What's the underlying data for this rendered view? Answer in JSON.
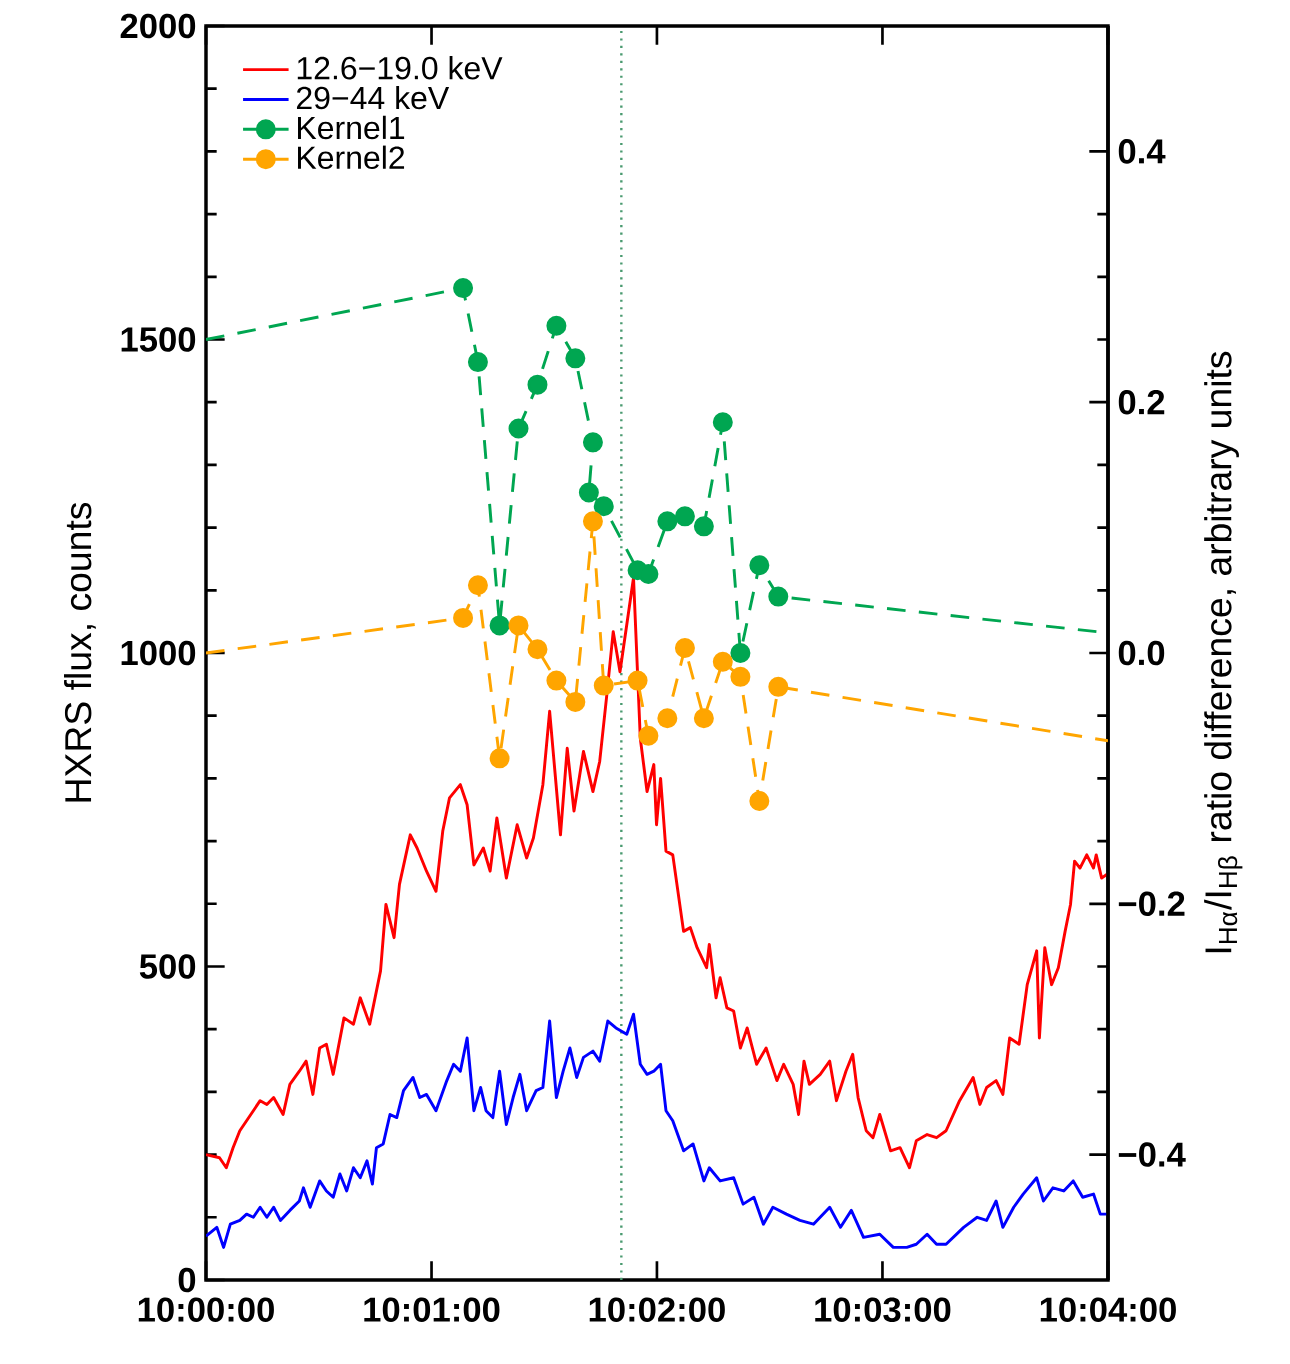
{
  "chart_data": {
    "type": "line",
    "ylabel": "HXRS flux, counts",
    "y2label": "I$_{Hα}$/I$_{Hβ}$ ratio difference, arbitrary units",
    "legend": "top left",
    "xlim": [
      10,
      10.06667
    ],
    "xticks": [
      {
        "value": 10,
        "label": "10:00:00"
      },
      {
        "value": 10.01667,
        "label": "10:01:00"
      },
      {
        "value": 10.03333,
        "label": "10:02:00"
      },
      {
        "value": 10.05,
        "label": "10:03:00"
      },
      {
        "value": 10.06667,
        "label": "10:04:00"
      }
    ],
    "ylim": [
      0,
      2000
    ],
    "yticks": [
      0,
      500,
      1000,
      1500,
      2000
    ],
    "y2lim": [
      -0.5,
      0.5
    ],
    "y2ticks": [
      {
        "value": -0.4,
        "label": "−0.4"
      },
      {
        "value": -0.2,
        "label": "−0.2"
      },
      {
        "value": 0,
        "label": "0.0"
      },
      {
        "value": 0.2,
        "label": "0.2"
      },
      {
        "value": 0.4,
        "label": "0.4"
      }
    ],
    "ref_lines": [
      {
        "axis": "x",
        "value": 10.0307,
        "color": "#4a9a70",
        "line_style": "dotted"
      }
    ],
    "series": [
      {
        "name": "12.6−19.0 keV",
        "color": "#ff0000",
        "marker": "none",
        "line_style": "solid",
        "x": [
          10.0,
          10.001,
          10.0015,
          10.002,
          10.0025,
          10.003,
          10.0035,
          10.004,
          10.0045,
          10.005,
          10.0057,
          10.0062,
          10.0069,
          10.0074,
          10.0079,
          10.0084,
          10.0089,
          10.0094,
          10.0102,
          10.0109,
          10.0114,
          10.0121,
          10.0129,
          10.0133,
          10.0139,
          10.0143,
          10.0151,
          10.0156,
          10.0163,
          10.017,
          10.0175,
          10.018,
          10.0188,
          10.0193,
          10.0198,
          10.0205,
          10.021,
          10.0215,
          10.0222,
          10.023,
          10.0237,
          10.0242,
          10.0249,
          10.0254,
          10.0262,
          10.0267,
          10.0272,
          10.0279,
          10.0286,
          10.0291,
          10.0296,
          10.0301,
          10.0306,
          10.0311,
          10.0316,
          10.0321,
          10.0326,
          10.0331,
          10.0333,
          10.0336,
          10.034,
          10.0345,
          10.0353,
          10.0358,
          10.0363,
          10.037,
          10.0372,
          10.0377,
          10.038,
          10.0385,
          10.039,
          10.0395,
          10.04,
          10.0407,
          10.0414,
          10.0422,
          10.0427,
          10.0434,
          10.0438,
          10.0442,
          10.0446,
          10.0454,
          10.0461,
          10.0466,
          10.0473,
          10.0478,
          10.0482,
          10.0488,
          10.0493,
          10.0498,
          10.0506,
          10.0513,
          10.052,
          10.0525,
          10.0533,
          10.054,
          10.0547,
          10.0557,
          10.0567,
          10.0572,
          10.0577,
          10.0584,
          10.0589,
          10.0594,
          10.0601,
          10.0607,
          10.0614,
          10.0616,
          10.062,
          10.0625,
          10.063,
          10.0635,
          10.0639,
          10.0642,
          10.0646,
          10.0651,
          10.0656,
          10.0658,
          10.0662,
          10.0666
        ],
        "values": [
          200,
          195,
          179,
          211,
          238,
          254,
          270,
          286,
          280,
          291,
          264,
          312,
          333,
          349,
          296,
          370,
          376,
          328,
          418,
          408,
          450,
          408,
          493,
          599,
          546,
          631,
          710,
          689,
          652,
          620,
          716,
          769,
          790,
          758,
          662,
          689,
          652,
          737,
          641,
          726,
          673,
          705,
          790,
          907,
          710,
          848,
          748,
          843,
          779,
          827,
          928,
          1034,
          970,
          1045,
          1120,
          864,
          779,
          822,
          726,
          800,
          684,
          678,
          556,
          562,
          530,
          498,
          535,
          450,
          482,
          434,
          429,
          370,
          402,
          344,
          370,
          318,
          344,
          312,
          264,
          349,
          312,
          328,
          349,
          286,
          333,
          360,
          291,
          238,
          227,
          264,
          206,
          211,
          179,
          222,
          232,
          227,
          238,
          286,
          323,
          280,
          307,
          318,
          296,
          386,
          376,
          471,
          525,
          386,
          530,
          471,
          498,
          556,
          599,
          668,
          657,
          678,
          657,
          678,
          641,
          647
        ]
      },
      {
        "name": "29−44 keV",
        "color": "#0000ff",
        "marker": "none",
        "line_style": "solid",
        "x": [
          10.0,
          10.0008,
          10.0013,
          10.0018,
          10.0025,
          10.003,
          10.0035,
          10.004,
          10.0045,
          10.005,
          10.0055,
          10.0062,
          10.0069,
          10.0072,
          10.0077,
          10.0084,
          10.0089,
          10.0094,
          10.0099,
          10.0104,
          10.0109,
          10.0114,
          10.0119,
          10.0123,
          10.0126,
          10.0131,
          10.0136,
          10.0141,
          10.0146,
          10.0153,
          10.0158,
          10.0163,
          10.017,
          10.0178,
          10.0183,
          10.0188,
          10.0193,
          10.0198,
          10.0203,
          10.0207,
          10.0212,
          10.0217,
          10.0222,
          10.0227,
          10.0232,
          10.0237,
          10.0244,
          10.0249,
          10.0254,
          10.0259,
          10.0264,
          10.0269,
          10.0274,
          10.0279,
          10.0286,
          10.0291,
          10.0297,
          10.0303,
          10.0311,
          10.0316,
          10.0321,
          10.0326,
          10.0331,
          10.0336,
          10.034,
          10.0345,
          10.0353,
          10.036,
          10.0368,
          10.0372,
          10.038,
          10.039,
          10.0397,
          10.0405,
          10.0412,
          10.0419,
          10.0429,
          10.0439,
          10.0449,
          10.0461,
          10.0469,
          10.0477,
          10.0486,
          10.0498,
          10.0508,
          10.0518,
          10.0525,
          10.0533,
          10.054,
          10.0547,
          10.056,
          10.057,
          10.0577,
          10.0584,
          10.0589,
          10.0597,
          10.0604,
          10.0614,
          10.0619,
          10.0626,
          10.0634,
          10.0641,
          10.0648,
          10.0656,
          10.0661,
          10.0666
        ],
        "values": [
          70,
          84,
          52,
          89,
          95,
          105,
          100,
          116,
          100,
          116,
          95,
          111,
          126,
          147,
          116,
          158,
          142,
          132,
          169,
          142,
          179,
          163,
          190,
          153,
          211,
          217,
          264,
          259,
          302,
          323,
          291,
          296,
          270,
          318,
          344,
          333,
          386,
          270,
          307,
          270,
          259,
          333,
          248,
          291,
          328,
          270,
          302,
          307,
          413,
          291,
          333,
          370,
          323,
          355,
          365,
          349,
          413,
          402,
          392,
          424,
          344,
          328,
          333,
          344,
          270,
          254,
          206,
          217,
          158,
          179,
          158,
          163,
          121,
          132,
          89,
          116,
          105,
          95,
          89,
          116,
          84,
          111,
          68,
          73,
          52,
          52,
          57,
          73,
          57,
          57,
          84,
          100,
          95,
          126,
          84,
          116,
          137,
          163,
          126,
          147,
          142,
          158,
          132,
          137,
          105,
          105
        ]
      },
      {
        "name": "Kernel1",
        "color": "#00a651",
        "marker": "circle",
        "line_style": "dashed",
        "axis": "y2",
        "x": [
          10.0,
          10.019,
          10.0201,
          10.0217,
          10.0231,
          10.0245,
          10.0259,
          10.0273,
          10.0286,
          10.0283,
          10.0294,
          10.0319,
          10.0327,
          10.0341,
          10.0354,
          10.0368,
          10.0382,
          10.0395,
          10.0409,
          10.0423,
          10.06667
        ],
        "values": [
          0.25,
          0.291,
          0.232,
          0.022,
          0.179,
          0.214,
          0.261,
          0.235,
          0.168,
          0.128,
          0.117,
          0.066,
          0.063,
          0.105,
          0.109,
          0.101,
          0.184,
          0.0,
          0.07,
          0.045,
          0.016
        ]
      },
      {
        "name": "Kernel2",
        "color": "#ffa500",
        "marker": "circle",
        "line_style": "dashed",
        "axis": "y2",
        "x": [
          10.0,
          10.019,
          10.0201,
          10.0217,
          10.0231,
          10.0245,
          10.0259,
          10.0273,
          10.0286,
          10.0294,
          10.0319,
          10.0327,
          10.0341,
          10.0354,
          10.0368,
          10.0382,
          10.0395,
          10.0409,
          10.0423,
          10.06667
        ],
        "values": [
          0.0,
          0.028,
          0.054,
          -0.084,
          0.022,
          0.003,
          -0.022,
          -0.039,
          0.105,
          -0.026,
          -0.022,
          -0.066,
          -0.052,
          0.004,
          -0.052,
          -0.007,
          -0.019,
          -0.118,
          -0.027,
          -0.07
        ]
      }
    ]
  }
}
